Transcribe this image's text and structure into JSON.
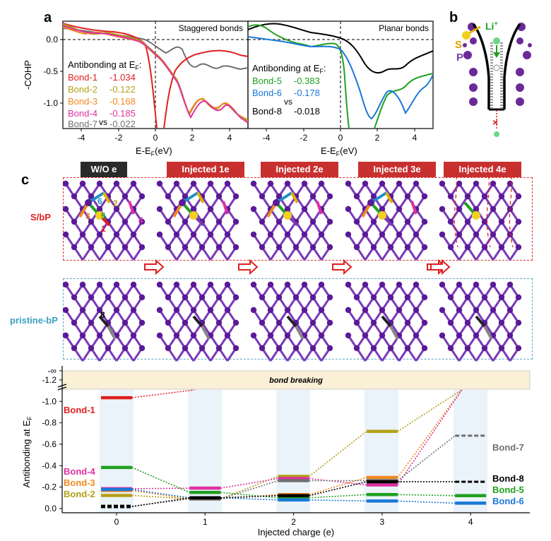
{
  "panels": {
    "a": "a",
    "b": "b",
    "c": "c"
  },
  "cohp_left": {
    "title": "Staggered bonds",
    "ylabel": "-COHP",
    "xlabel": "E-E",
    "xlabel_sub": "F",
    "xlabel_unit": "(eV)",
    "xticks": [
      "-4",
      "-2",
      "0",
      "2",
      "4"
    ],
    "yticks": [
      "0.0",
      "-0.5",
      "-1.0"
    ],
    "legend_title": "Antibonding at E",
    "legend_title_sub": "F",
    "legend_title_colon": ":",
    "vs": "vs",
    "entries": [
      {
        "name": "Bond-1",
        "value": "-1.034",
        "color": "#e02020"
      },
      {
        "name": "Bond-2",
        "value": "-0.122",
        "color": "#b5a018"
      },
      {
        "name": "Bond-3",
        "value": "-0.168",
        "color": "#f08a20"
      },
      {
        "name": "Bond-4",
        "value": "-0.185",
        "color": "#e030a0"
      },
      {
        "name": "Bond-7",
        "value": "-0.022",
        "color": "#707070"
      }
    ]
  },
  "cohp_right": {
    "title": "Planar bonds",
    "xlabel": "E-E",
    "xlabel_sub": "F",
    "xlabel_unit": "(eV)",
    "xticks": [
      "-4",
      "-2",
      "0",
      "2",
      "4"
    ],
    "legend_title": "Antibonding at E",
    "legend_title_sub": "F",
    "legend_title_colon": ":",
    "vs": "vs",
    "entries": [
      {
        "name": "Bond-5",
        "value": "-0.383",
        "color": "#20a020"
      },
      {
        "name": "Bond-6",
        "value": "-0.178",
        "color": "#1a78d8"
      },
      {
        "name": "Bond-8",
        "value": "-0.018",
        "color": "#000000"
      }
    ]
  },
  "schematic": {
    "s_label": "S",
    "p_label": "P",
    "li_label": "Li",
    "li_sup": "+",
    "block_mark": "×"
  },
  "states": {
    "heads": [
      "W/O e",
      "Injected 1e",
      "Injected 2e",
      "Injected 3e",
      "Injected 4e"
    ],
    "row1_label": "S/bP",
    "row2_label": "pristine-bP",
    "bond_numbers": [
      "1",
      "2",
      "3",
      "4",
      "5",
      "6",
      "7",
      "8"
    ]
  },
  "bottom_chart": {
    "banner": "bond breaking",
    "ylabel": "Antibonding at E",
    "ylabel_sub": "F",
    "xlabel": "Injected charge (e)",
    "neg_inf": "-∞",
    "yticks": [
      "-1.2",
      "-1.0",
      "-0.8",
      "-0.6",
      "-0.4",
      "-0.2",
      "0.0"
    ],
    "xticks": [
      "0",
      "1",
      "2",
      "3",
      "4"
    ],
    "labels_left": [
      "Bond-1",
      "Bond-4",
      "Bond-3",
      "Bond-2"
    ],
    "labels_right": [
      "Bond-7",
      "Bond-8",
      "Bond-5",
      "Bond-6"
    ]
  },
  "chart_data": {
    "type": "line",
    "title": "",
    "xlabel": "Injected charge (e)",
    "ylabel": "Antibonding at EF",
    "x": [
      0,
      1,
      2,
      3,
      4
    ],
    "ylim": [
      0.05,
      -1.3
    ],
    "series": [
      {
        "name": "Bond-1",
        "color": "#e02020",
        "values": [
          -1.034,
          null,
          null,
          null,
          null
        ],
        "breaks_after": 0
      },
      {
        "name": "Bond-2",
        "color": "#b5a018",
        "values": [
          -0.122,
          -0.09,
          -0.3,
          -0.72,
          null
        ],
        "breaks_after": 3
      },
      {
        "name": "Bond-3",
        "color": "#f08a20",
        "values": [
          -0.168,
          -0.09,
          -0.13,
          -0.29,
          null
        ],
        "breaks_after": 3
      },
      {
        "name": "Bond-4",
        "color": "#e030a0",
        "values": [
          -0.185,
          -0.19,
          -0.28,
          -0.22,
          null
        ],
        "breaks_after": 3
      },
      {
        "name": "Bond-5",
        "color": "#20a020",
        "values": [
          -0.383,
          -0.15,
          -0.1,
          -0.13,
          -0.12
        ]
      },
      {
        "name": "Bond-6",
        "color": "#1a78d8",
        "values": [
          -0.178,
          -0.1,
          -0.08,
          -0.07,
          -0.05
        ]
      },
      {
        "name": "Bond-7",
        "color": "#707070",
        "values": [
          -0.022,
          -0.09,
          -0.26,
          -0.26,
          -0.68
        ]
      },
      {
        "name": "Bond-8",
        "color": "#000000",
        "values": [
          -0.018,
          -0.1,
          -0.12,
          -0.25,
          -0.25
        ]
      }
    ]
  }
}
